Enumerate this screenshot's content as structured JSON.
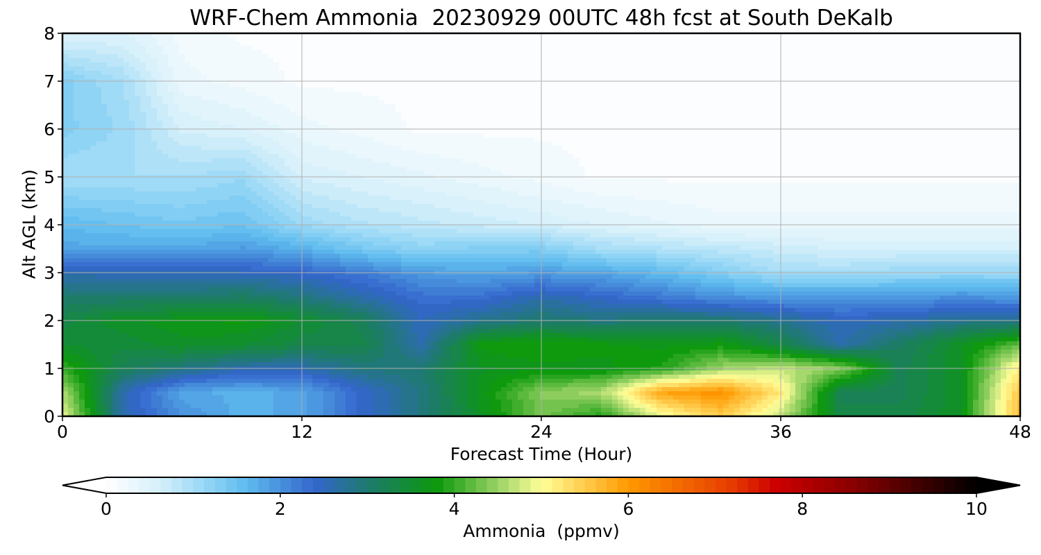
{
  "chart_data": {
    "type": "heatmap",
    "title": "WRF-Chem Ammonia  20230929 00UTC 48h fcst at South DeKalb",
    "xlabel": "Forecast Time (Hour)",
    "ylabel": "Alt AGL (km)",
    "xlim": [
      0,
      48
    ],
    "ylim": [
      0,
      8
    ],
    "x_ticks": [
      "0",
      "12",
      "24",
      "36",
      "48"
    ],
    "y_ticks": [
      "0",
      "1",
      "2",
      "3",
      "4",
      "5",
      "6",
      "7",
      "8"
    ],
    "grid": true,
    "colorbar": {
      "label": "Ammonia  (ppmv)",
      "range": [
        0,
        10
      ],
      "ticks": [
        "0",
        "2",
        "4",
        "6",
        "8",
        "10"
      ],
      "extend": "both",
      "stops": [
        {
          "v": 0,
          "c": "#ffffff"
        },
        {
          "v": 0.6,
          "c": "#d6f0fb"
        },
        {
          "v": 1.2,
          "c": "#8fd3f5"
        },
        {
          "v": 1.6,
          "c": "#5fbcee"
        },
        {
          "v": 2.4,
          "c": "#3366cc"
        },
        {
          "v": 3.0,
          "c": "#1e7a6e"
        },
        {
          "v": 3.8,
          "c": "#0c990c"
        },
        {
          "v": 4.5,
          "c": "#9ad266"
        },
        {
          "v": 5.0,
          "c": "#ffff99"
        },
        {
          "v": 6.0,
          "c": "#ff9900"
        },
        {
          "v": 7.2,
          "c": "#e63a00"
        },
        {
          "v": 7.7,
          "c": "#cc0000"
        },
        {
          "v": 8.6,
          "c": "#880000"
        },
        {
          "v": 10,
          "c": "#000000"
        }
      ]
    },
    "grid_hours": [
      0,
      3,
      6,
      9,
      12,
      15,
      18,
      21,
      24,
      27,
      30,
      33,
      36,
      39,
      42,
      45,
      48
    ],
    "grid_heights_km": [
      0,
      0.5,
      1,
      1.5,
      2,
      2.5,
      3,
      3.5,
      4,
      5,
      6,
      7,
      8
    ],
    "values_ppmv": [
      [
        4.9,
        2.6,
        2.0,
        1.7,
        1.8,
        2.4,
        2.9,
        3.6,
        4.3,
        3.9,
        4.9,
        5.5,
        4.7,
        3.3,
        3.3,
        3.6,
        5.7
      ],
      [
        4.6,
        2.6,
        1.8,
        1.7,
        1.8,
        2.4,
        2.9,
        3.7,
        4.4,
        4.6,
        5.9,
        6.1,
        5.2,
        3.2,
        3.2,
        3.6,
        5.6
      ],
      [
        4.0,
        3.2,
        2.9,
        2.6,
        2.6,
        2.9,
        3.0,
        3.6,
        3.7,
        3.7,
        3.9,
        4.5,
        4.7,
        4.4,
        3.2,
        3.6,
        5.2
      ],
      [
        3.5,
        3.4,
        3.6,
        3.5,
        3.3,
        3.3,
        2.6,
        3.8,
        3.9,
        3.8,
        3.7,
        3.8,
        3.3,
        2.6,
        3.1,
        3.6,
        4.2
      ],
      [
        3.3,
        3.6,
        3.7,
        3.8,
        3.5,
        3.2,
        2.5,
        2.8,
        3.0,
        2.9,
        3.0,
        3.0,
        2.8,
        2.5,
        2.6,
        2.8,
        2.8
      ],
      [
        3.0,
        3.0,
        3.0,
        3.1,
        2.9,
        2.6,
        2.3,
        2.3,
        2.6,
        2.4,
        2.2,
        2.0,
        1.9,
        1.9,
        1.9,
        2.0,
        1.9
      ],
      [
        2.6,
        2.5,
        2.5,
        2.5,
        2.4,
        2.2,
        1.9,
        1.8,
        1.9,
        1.8,
        1.6,
        1.3,
        1.0,
        1.0,
        1.1,
        1.1,
        1.1
      ],
      [
        1.8,
        1.8,
        1.8,
        1.9,
        1.7,
        1.4,
        1.2,
        1.3,
        1.3,
        1.0,
        0.9,
        0.8,
        0.7,
        0.6,
        0.6,
        0.6,
        0.6
      ],
      [
        1.6,
        1.5,
        1.4,
        1.5,
        1.1,
        0.9,
        0.8,
        0.7,
        0.6,
        0.5,
        0.4,
        0.3,
        0.3,
        0.3,
        0.3,
        0.3,
        0.3
      ],
      [
        1.0,
        1.0,
        1.0,
        1.1,
        0.6,
        0.5,
        0.4,
        0.3,
        0.2,
        0.1,
        0.1,
        0.1,
        0.1,
        0.1,
        0.1,
        0.1,
        0.1
      ],
      [
        1.3,
        1.1,
        0.6,
        0.5,
        0.3,
        0.2,
        0.1,
        0.1,
        0.1,
        0.1,
        0.1,
        0.1,
        0.1,
        0.1,
        0.1,
        0.1,
        0.1
      ],
      [
        1.3,
        1.0,
        0.3,
        0.2,
        0.1,
        0.1,
        0.1,
        0.1,
        0.1,
        0.1,
        0.1,
        0.1,
        0.1,
        0.1,
        0.1,
        0.1,
        0.1
      ],
      [
        0.5,
        0.5,
        0.2,
        0.1,
        0.1,
        0.1,
        0.1,
        0.1,
        0.1,
        0.1,
        0.1,
        0.1,
        0.1,
        0.1,
        0.1,
        0.1,
        0.1
      ]
    ]
  }
}
